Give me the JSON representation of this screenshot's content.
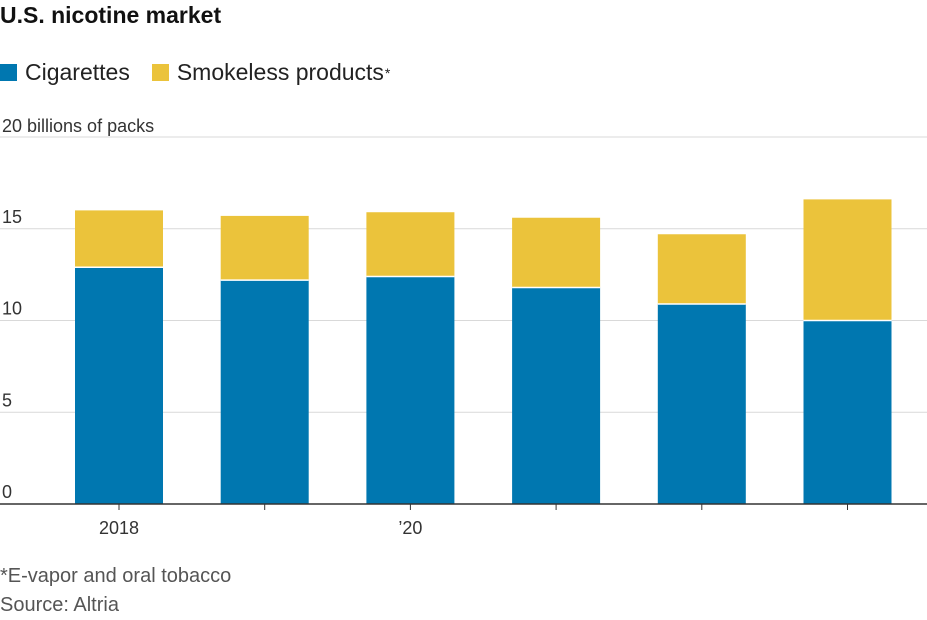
{
  "chart_data": {
    "type": "bar",
    "stacked": true,
    "title": "U.S. nicotine market",
    "ylabel": "billions of packs",
    "ylim": [
      0,
      20
    ],
    "yticks": [
      0,
      5,
      10,
      15,
      20
    ],
    "ytick_labels": [
      "0",
      "5",
      "10",
      "15",
      "20"
    ],
    "xtick_labels": [
      "2018",
      "",
      "’20",
      "",
      "",
      ""
    ],
    "series": [
      {
        "name": "Cigarettes",
        "values": [
          12.9,
          12.2,
          12.4,
          11.8,
          10.9,
          10.0
        ]
      },
      {
        "name": "Smokeless products",
        "values": [
          3.1,
          3.5,
          3.5,
          3.8,
          3.8,
          6.6
        ]
      }
    ],
    "colors": {
      "Cigarettes": "#0077b0",
      "Smokeless products": "#ebc33b"
    },
    "grid": true,
    "legend": "top-left"
  },
  "legend": {
    "items": [
      "Cigarettes",
      "Smokeless products"
    ],
    "asterisk": "*"
  },
  "notes": {
    "footnote": "*E-vapor and oral tobacco",
    "source": "Source: Altria"
  }
}
